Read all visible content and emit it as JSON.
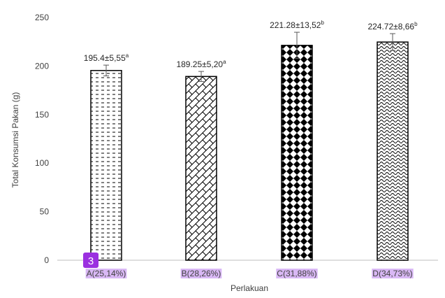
{
  "chart_data": {
    "type": "bar",
    "title": "",
    "xlabel": "Perlakuan",
    "ylabel": "Total Konsumsi Pakan (g)",
    "ylim": [
      0,
      250
    ],
    "yticks": [
      0,
      50,
      100,
      150,
      200,
      250
    ],
    "grid": false,
    "legend": "none",
    "categories": [
      {
        "letter": "A",
        "num_a": "25",
        "num_b": "14%)"
      },
      {
        "letter": "B",
        "num_a": "28",
        "num_b": "26%)"
      },
      {
        "letter": "C",
        "num_a": "31",
        "num_b": "88%)"
      },
      {
        "letter": "D",
        "num_a": "34",
        "num_b": "73%)"
      }
    ],
    "values": [
      195.4,
      189.25,
      221.28,
      224.72
    ],
    "errors": [
      5.55,
      5.2,
      13.52,
      8.66
    ],
    "data_labels": [
      {
        "value": "195.4±5,55",
        "sup": "a"
      },
      {
        "value": "189.25±5,20",
        "sup": "a"
      },
      {
        "value": "221.28±13,52",
        "sup": "b"
      },
      {
        "value": "224.72±8,66",
        "sup": "b"
      }
    ],
    "patterns": [
      "dashes",
      "weave",
      "diamonds",
      "waves"
    ],
    "colors": {
      "bar_stroke": "#000000",
      "axis": "#bfbfbf",
      "text": "#404040",
      "highlight": "#d9b8f5",
      "badge": "#9b30e0"
    }
  },
  "annotation": {
    "badge_number": "3"
  }
}
